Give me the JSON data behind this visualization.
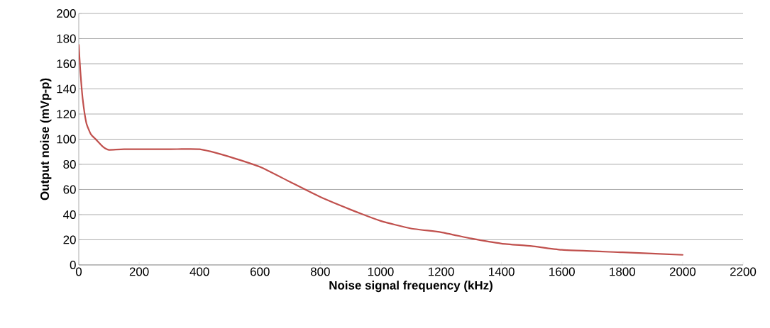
{
  "chart_data": {
    "type": "line",
    "xlabel": "Noise signal frequency (kHz)",
    "ylabel": "Output noise (mVp-p)",
    "x": [
      0,
      5,
      13,
      25,
      40,
      60,
      80,
      100,
      150,
      300,
      400,
      500,
      600,
      700,
      800,
      900,
      1000,
      1100,
      1200,
      1300,
      1400,
      1500,
      1600,
      1800,
      2000
    ],
    "series": [
      {
        "color": "#c0504d",
        "values": [
          175,
          155,
          132,
          113,
          104,
          99,
          94,
          91.5,
          92,
          92,
          92,
          86,
          78,
          66,
          54,
          44,
          35,
          29,
          26,
          21,
          17,
          15,
          12,
          10,
          8
        ]
      }
    ],
    "xlim": [
      0,
      2200
    ],
    "xticks": [
      0,
      200,
      400,
      600,
      800,
      1000,
      1200,
      1400,
      1600,
      1800,
      2000,
      2200
    ],
    "ylim": [
      0,
      200
    ],
    "yticks": [
      0,
      20,
      40,
      60,
      80,
      100,
      120,
      140,
      160,
      180,
      200
    ],
    "grid": "y",
    "marker": "none",
    "line_style": "solid"
  }
}
